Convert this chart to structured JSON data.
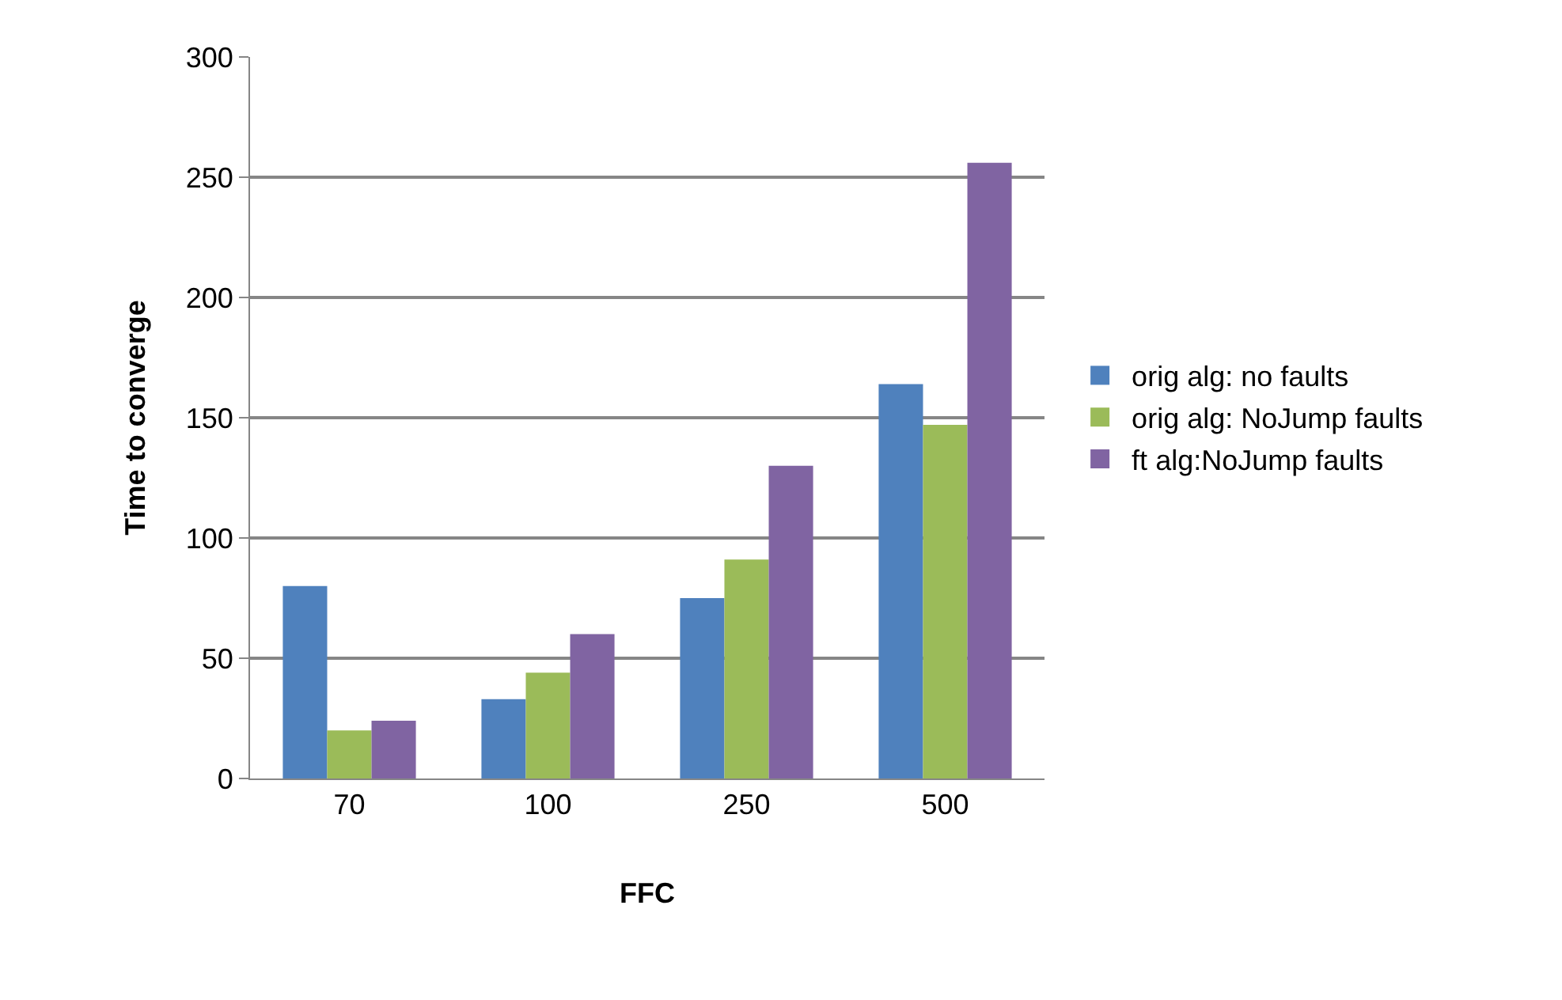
{
  "chart_data": {
    "type": "bar",
    "xlabel": "FFC",
    "ylabel": "Time to converge",
    "categories": [
      "70",
      "100",
      "250",
      "500"
    ],
    "series": [
      {
        "name": "orig alg: no faults",
        "color": "#4f81bd",
        "values": [
          80,
          33,
          75,
          164
        ]
      },
      {
        "name": "orig alg: NoJump faults",
        "color": "#9bbb59",
        "values": [
          20,
          44,
          91,
          147
        ]
      },
      {
        "name": "ft alg:NoJump faults",
        "color": "#8064a2",
        "values": [
          24,
          60,
          130,
          256
        ]
      }
    ],
    "ylim": [
      0,
      300
    ],
    "yticks": [
      0,
      50,
      100,
      150,
      200,
      250,
      300
    ],
    "grid": "y",
    "legend": "right"
  }
}
